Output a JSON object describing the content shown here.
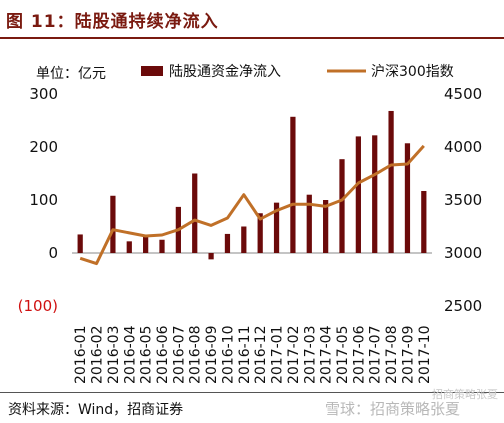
{
  "header": {
    "title": "图 11：陆股通持续净流入"
  },
  "footer": {
    "source": "资料来源：Wind，招商证券"
  },
  "watermark": {
    "text": "雪球：招商策略张夏",
    "small": "招商策略张夏"
  },
  "chart_data": {
    "type": "bar+line",
    "unit_label": "单位：亿元",
    "categories": [
      "2016-01",
      "2016-02",
      "2016-03",
      "2016-04",
      "2016-05",
      "2016-06",
      "2016-07",
      "2016-08",
      "2016-09",
      "2016-10",
      "2016-11",
      "2016-12",
      "2017-01",
      "2017-02",
      "2017-03",
      "2017-04",
      "2017-05",
      "2017-06",
      "2017-07",
      "2017-08",
      "2017-09",
      "2017-10"
    ],
    "series": [
      {
        "name": "陆股通资金净流入",
        "axis": "left",
        "kind": "bar",
        "color": "#6b0a0a",
        "values": [
          35,
          0,
          108,
          22,
          33,
          25,
          87,
          150,
          -12,
          36,
          50,
          75,
          95,
          257,
          110,
          100,
          177,
          220,
          222,
          268,
          207,
          117
        ]
      },
      {
        "name": "沪深300指数",
        "axis": "right",
        "kind": "line",
        "color": "#c07028",
        "values": [
          2950,
          2900,
          3220,
          3190,
          3160,
          3170,
          3220,
          3310,
          3260,
          3330,
          3550,
          3320,
          3400,
          3460,
          3460,
          3440,
          3500,
          3660,
          3740,
          3830,
          3840,
          4010
        ]
      }
    ],
    "left_axis": {
      "ylim": [
        -100,
        300
      ],
      "ticks": [
        "(100)",
        "0",
        "100",
        "200",
        "300"
      ],
      "tick_values": [
        -100,
        0,
        100,
        200,
        300
      ]
    },
    "right_axis": {
      "ylim": [
        2500,
        4500
      ],
      "ticks": [
        "2500",
        "3000",
        "3500",
        "4000",
        "4500"
      ],
      "tick_values": [
        2500,
        3000,
        3500,
        4000,
        4500
      ]
    },
    "grid": false,
    "legend_position": "top"
  }
}
